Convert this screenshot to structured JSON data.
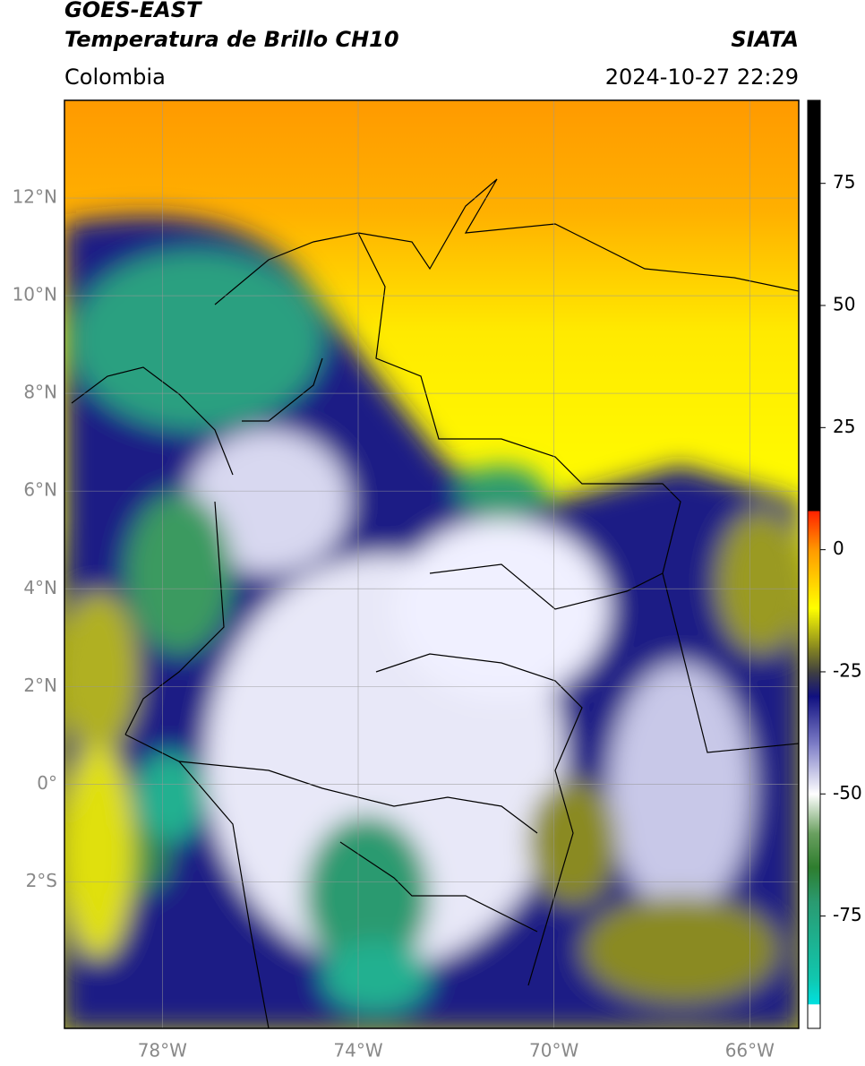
{
  "header": {
    "title": "GOES-EAST",
    "subtitle": "Temperatura de Brillo CH10",
    "region": "Colombia",
    "source": "SIATA",
    "datetime": "2024-10-27 22:29"
  },
  "map": {
    "xlim": [
      -80,
      -65
    ],
    "ylim": [
      -5,
      14
    ],
    "xticks": [
      {
        "value": -78,
        "label": "78°W"
      },
      {
        "value": -74,
        "label": "74°W"
      },
      {
        "value": -70,
        "label": "70°W"
      },
      {
        "value": -66,
        "label": "66°W"
      }
    ],
    "yticks": [
      {
        "value": 12,
        "label": "12°N"
      },
      {
        "value": 10,
        "label": "10°N"
      },
      {
        "value": 8,
        "label": "8°N"
      },
      {
        "value": 6,
        "label": "6°N"
      },
      {
        "value": 4,
        "label": "4°N"
      },
      {
        "value": 2,
        "label": "2°N"
      },
      {
        "value": 0,
        "label": "0°"
      },
      {
        "value": -2,
        "label": "2°S"
      }
    ],
    "grid": true,
    "grid_color": "#999999",
    "tick_label_color": "#888888"
  },
  "colorbar": {
    "lim": [
      -98,
      92
    ],
    "ticks": [
      75,
      50,
      25,
      0,
      -25,
      -50,
      -75
    ],
    "stops": [
      {
        "value": -98,
        "color": "#ffffff"
      },
      {
        "value": -93,
        "color": "#ffffff"
      },
      {
        "value": -93,
        "color": "#00e0e0"
      },
      {
        "value": -88,
        "color": "#10c8b0"
      },
      {
        "value": -72,
        "color": "#2a9a70"
      },
      {
        "value": -65,
        "color": "#2e7d2e"
      },
      {
        "value": -58,
        "color": "#6aa060"
      },
      {
        "value": -50,
        "color": "#ffffff"
      },
      {
        "value": -40,
        "color": "#8080c8"
      },
      {
        "value": -30,
        "color": "#101080"
      },
      {
        "value": -25,
        "color": "#404040"
      },
      {
        "value": -20,
        "color": "#888820"
      },
      {
        "value": -12,
        "color": "#ffff00"
      },
      {
        "value": 0,
        "color": "#ff9900"
      },
      {
        "value": 8,
        "color": "#ff2000"
      },
      {
        "value": 8,
        "color": "#000000"
      },
      {
        "value": 92,
        "color": "#000000"
      }
    ]
  }
}
